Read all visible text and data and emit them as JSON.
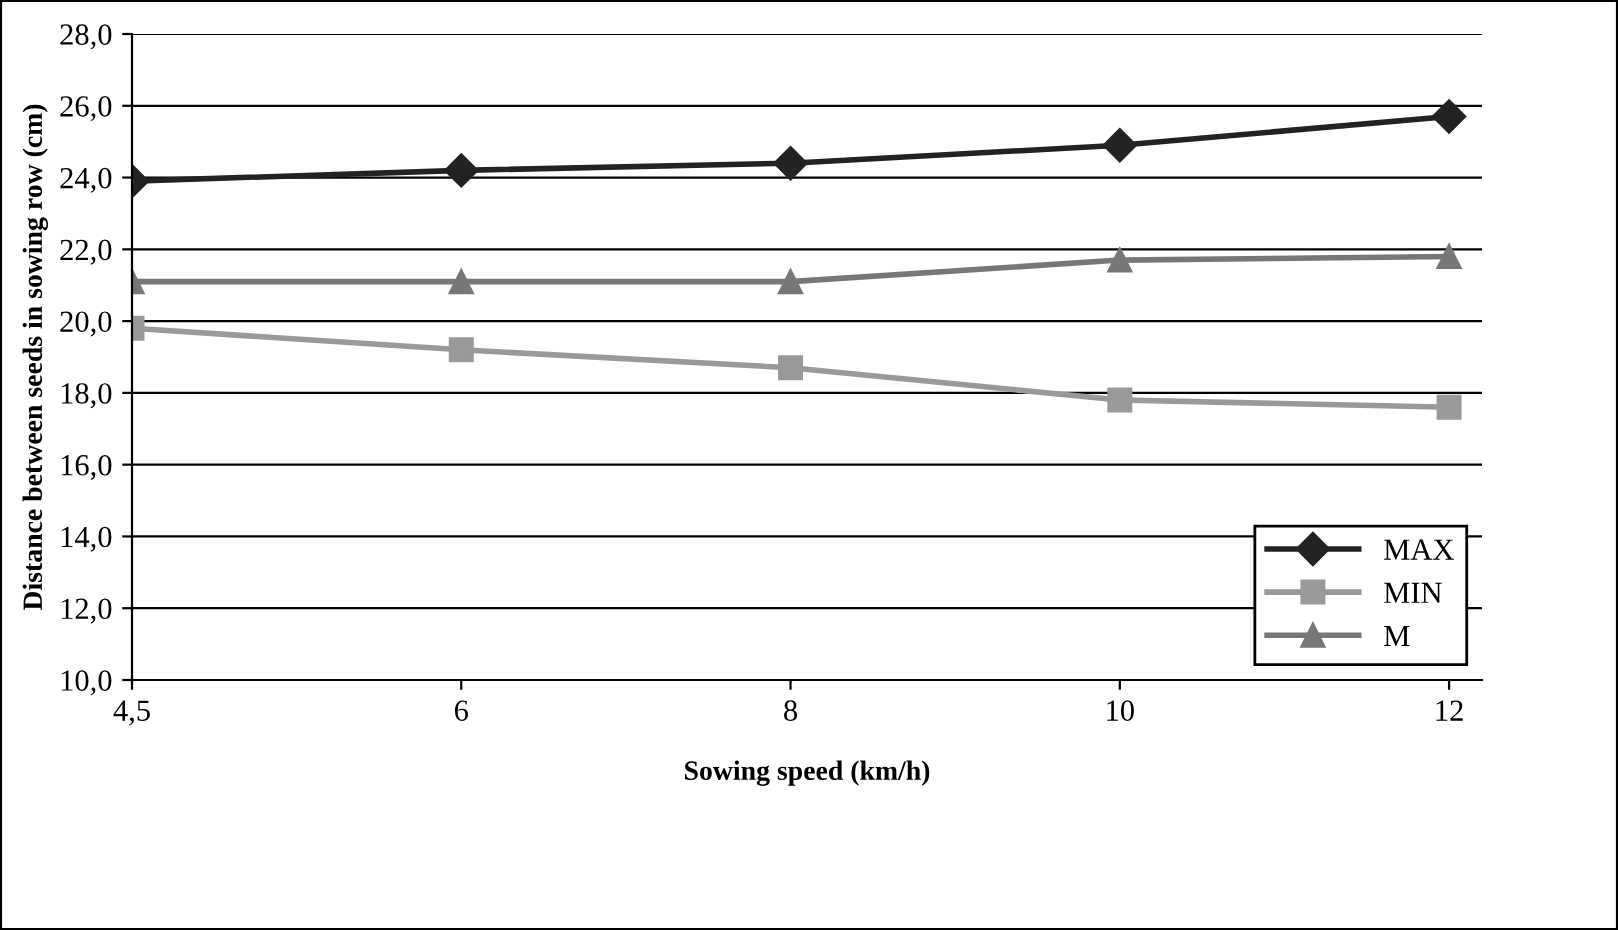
{
  "chart_data": {
    "type": "line",
    "xlabel": "Sowing speed (km/h)",
    "ylabel": "Distance between seeds in sowing row (cm)",
    "categories": [
      "4,5",
      "6",
      "8",
      "10",
      "12"
    ],
    "series": [
      {
        "name": "MAX",
        "color": "#222222",
        "marker": "diamond",
        "values": [
          23.9,
          24.2,
          24.4,
          24.9,
          25.7
        ]
      },
      {
        "name": "MIN",
        "color": "#999999",
        "marker": "square",
        "values": [
          19.8,
          19.2,
          18.7,
          17.8,
          17.6
        ]
      },
      {
        "name": "M",
        "color": "#777777",
        "marker": "triangle",
        "values": [
          21.1,
          21.1,
          21.1,
          21.7,
          21.8
        ]
      }
    ],
    "ylim": [
      10,
      28
    ],
    "yticks": [
      {
        "value": 10,
        "label": "10,0"
      },
      {
        "value": 12,
        "label": "12,0"
      },
      {
        "value": 14,
        "label": "14,0"
      },
      {
        "value": 16,
        "label": "16,0"
      },
      {
        "value": 18,
        "label": "18,0"
      },
      {
        "value": 20,
        "label": "20,0"
      },
      {
        "value": 22,
        "label": "22,0"
      },
      {
        "value": 24,
        "label": "24,0"
      },
      {
        "value": 26,
        "label": "26,0"
      },
      {
        "value": 28,
        "label": "28,0"
      }
    ],
    "grid": "y",
    "legend": "bottom right",
    "line_style": "solid"
  }
}
